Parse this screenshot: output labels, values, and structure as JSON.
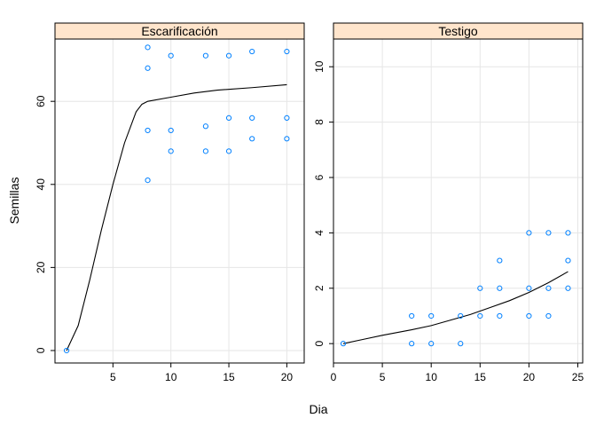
{
  "chart_data": {
    "type": "scatter",
    "xlabel": "Dia",
    "ylabel": "Semillas",
    "grid": true,
    "colors": {
      "points": "#0080ff",
      "line": "#000000",
      "strip": "#ffe5cc",
      "grid": "#e6e6e6"
    },
    "panels": [
      {
        "title": "Escarificación",
        "xlim": [
          0,
          21.5
        ],
        "ylim": [
          -3,
          75
        ],
        "xticks": [
          5,
          10,
          15,
          20
        ],
        "yticks": [
          0,
          20,
          40,
          60
        ],
        "points": [
          [
            1,
            0
          ],
          [
            8,
            73
          ],
          [
            8,
            68
          ],
          [
            8,
            53
          ],
          [
            8,
            41
          ],
          [
            10,
            71
          ],
          [
            10,
            53
          ],
          [
            10,
            48
          ],
          [
            13,
            71
          ],
          [
            13,
            54
          ],
          [
            13,
            48
          ],
          [
            15,
            71
          ],
          [
            15,
            56
          ],
          [
            15,
            48
          ],
          [
            17,
            72
          ],
          [
            17,
            56
          ],
          [
            17,
            51
          ],
          [
            20,
            72
          ],
          [
            20,
            56
          ],
          [
            20,
            51
          ]
        ],
        "curve": [
          [
            1,
            0
          ],
          [
            2,
            6
          ],
          [
            3,
            17
          ],
          [
            4,
            29
          ],
          [
            5,
            40
          ],
          [
            6,
            50
          ],
          [
            7,
            57.5
          ],
          [
            7.5,
            59.3
          ],
          [
            8,
            60
          ],
          [
            10,
            61
          ],
          [
            12,
            62
          ],
          [
            14,
            62.7
          ],
          [
            17,
            63.3
          ],
          [
            20,
            64
          ]
        ]
      },
      {
        "title": "Testigo",
        "xlim": [
          0,
          25.5
        ],
        "ylim": [
          -0.7,
          11
        ],
        "xticks": [
          0,
          5,
          10,
          15,
          20,
          25
        ],
        "yticks": [
          0,
          2,
          4,
          6,
          8,
          10
        ],
        "points": [
          [
            1,
            0
          ],
          [
            8,
            1
          ],
          [
            8,
            0
          ],
          [
            10,
            1
          ],
          [
            10,
            0
          ],
          [
            13,
            1
          ],
          [
            13,
            0
          ],
          [
            15,
            2
          ],
          [
            15,
            1
          ],
          [
            17,
            3
          ],
          [
            17,
            2
          ],
          [
            17,
            1
          ],
          [
            20,
            4
          ],
          [
            20,
            2
          ],
          [
            20,
            1
          ],
          [
            22,
            4
          ],
          [
            22,
            2
          ],
          [
            22,
            1
          ],
          [
            24,
            4
          ],
          [
            24,
            3
          ],
          [
            24,
            2
          ]
        ],
        "curve": [
          [
            1,
            0
          ],
          [
            3,
            0.15
          ],
          [
            5,
            0.3
          ],
          [
            8,
            0.5
          ],
          [
            10,
            0.65
          ],
          [
            12,
            0.85
          ],
          [
            14,
            1.05
          ],
          [
            16,
            1.3
          ],
          [
            18,
            1.55
          ],
          [
            20,
            1.85
          ],
          [
            22,
            2.2
          ],
          [
            24,
            2.6
          ]
        ]
      }
    ]
  }
}
